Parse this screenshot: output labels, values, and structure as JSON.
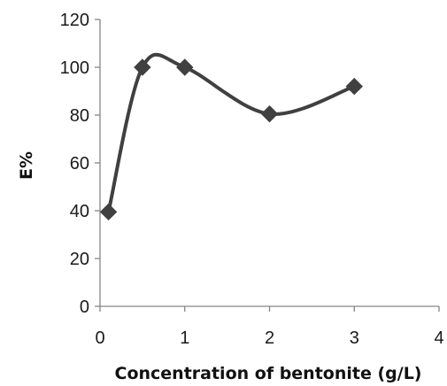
{
  "chart_data": {
    "type": "line",
    "title": "",
    "xlabel": "Concentration  of  bentonite (g/L)",
    "ylabel": "E%",
    "xlim": [
      0,
      4
    ],
    "ylim": [
      0,
      120
    ],
    "x_ticks": [
      0,
      1,
      2,
      3,
      4
    ],
    "y_ticks": [
      0,
      20,
      40,
      60,
      80,
      100,
      120
    ],
    "grid": false,
    "legend": "none",
    "smooth": true,
    "marker": "diamond",
    "color": "#404040",
    "series": [
      {
        "x": [
          0.1,
          0.5,
          1,
          2,
          3
        ],
        "values": [
          39.5,
          100,
          100,
          80.5,
          92
        ]
      }
    ]
  }
}
